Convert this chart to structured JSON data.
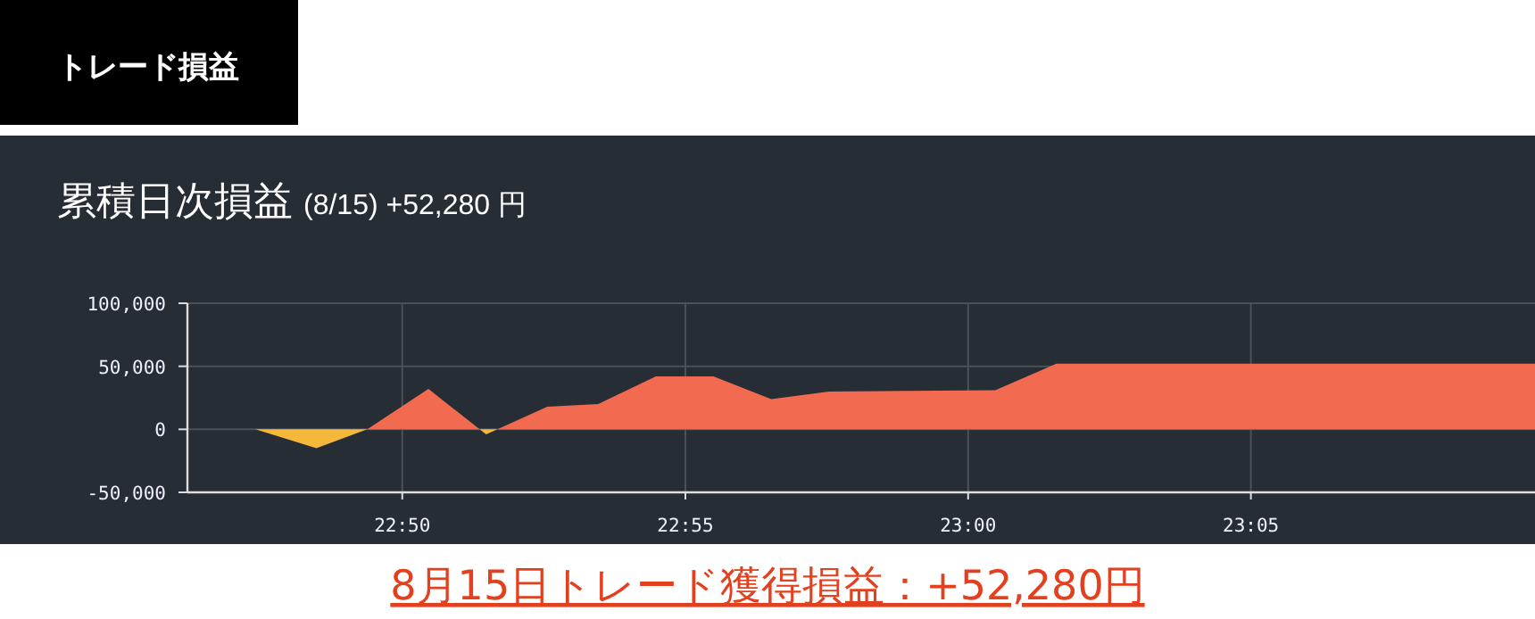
{
  "chart_data": {
    "type": "area",
    "title": "累積日次損益",
    "subtitle": "(8/15) +52,280 円",
    "annotations": [
      "トレード損益",
      "8月15日トレード獲得損益：+52,280円"
    ],
    "x": [
      22.77,
      22.79,
      22.808,
      22.823,
      22.841,
      22.858,
      22.876,
      22.891,
      22.908,
      22.925,
      22.942,
      22.959,
      23.008,
      23.026,
      23.167
    ],
    "series": [
      {
        "values": [
          0,
          0,
          -15000,
          0,
          32000,
          -4000,
          18000,
          20000,
          42000,
          42000,
          24000,
          30000,
          31000,
          52000,
          52000
        ],
        "colors": [
          "#f26a4f",
          "#f26a4f",
          "#f5b83a",
          "#f26a4f",
          "#f26a4f",
          "#f5b83a",
          "#f26a4f",
          "#f26a4f",
          "#f26a4f",
          "#f26a4f",
          "#f26a4f",
          "#f26a4f",
          "#f26a4f",
          "#f26a4f",
          "#f26a4f"
        ]
      }
    ],
    "xlim": [
      22.77,
      23.167
    ],
    "xticks": [
      {
        "value": 22.8333,
        "label": "22:50"
      },
      {
        "value": 22.9167,
        "label": "22:55"
      },
      {
        "value": 23.0,
        "label": "23:00"
      },
      {
        "value": 23.0833,
        "label": "23:05"
      }
    ],
    "ylim": [
      -50000,
      100000
    ],
    "yticks": [
      {
        "value": -50000,
        "label": "-50,000"
      },
      {
        "value": 0,
        "label": "0"
      },
      {
        "value": 50000,
        "label": "50,000"
      },
      {
        "value": 100000,
        "label": "100,000"
      }
    ],
    "grid": true
  }
}
